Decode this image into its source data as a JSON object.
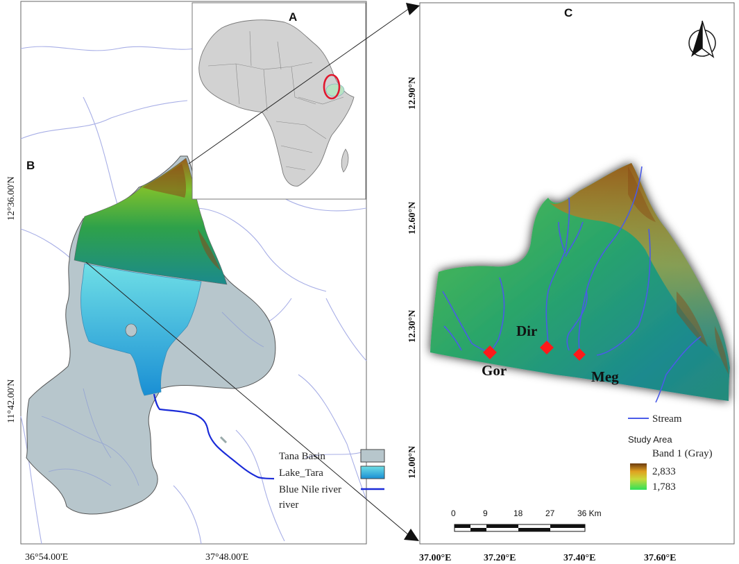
{
  "panels": {
    "A": "A",
    "B": "B",
    "C": "C"
  },
  "panel_b": {
    "lat_top": "12°36.00'N",
    "lat_bottom": "11°42.00'N",
    "lon_left": "36°54.00'E",
    "lon_right": "37°48.00'E",
    "legend": {
      "tana_basin": "Tana Basin",
      "lake": "Lake_Tara",
      "river_line1": "Blue Nile river",
      "river_line2": "river"
    }
  },
  "panel_c": {
    "lat_labels": [
      "12.90°N",
      "12.60°N",
      "12.30°N",
      "12.00°N"
    ],
    "lon_labels": [
      "37.00°E",
      "37.20°E",
      "37.40°E",
      "37.60°E"
    ],
    "sites": [
      {
        "name": "Gor",
        "color": "#ff1a1a"
      },
      {
        "name": "Dir",
        "color": "#ff1a1a"
      },
      {
        "name": "Meg",
        "color": "#ff1a1a"
      }
    ],
    "legend": {
      "stream": "Stream",
      "study_area": "Study Area",
      "band": "Band 1 (Gray)",
      "max": "2,833",
      "min": "1,783"
    },
    "scale_ticks": [
      "0",
      "9",
      "18",
      "27",
      "36 Km"
    ]
  },
  "colors": {
    "basin": "#b9c7cd",
    "lake_top": "#63d6e0",
    "lake_bottom": "#1890d0",
    "river": "#1a2bd8",
    "stream": "#4a5be8",
    "elev_high": "#8a4a14",
    "elev_mid": "#3cbb3c",
    "elev_low": "#1c8c8e"
  },
  "icons": [
    "north-arrow-icon",
    "site-marker-icon"
  ]
}
